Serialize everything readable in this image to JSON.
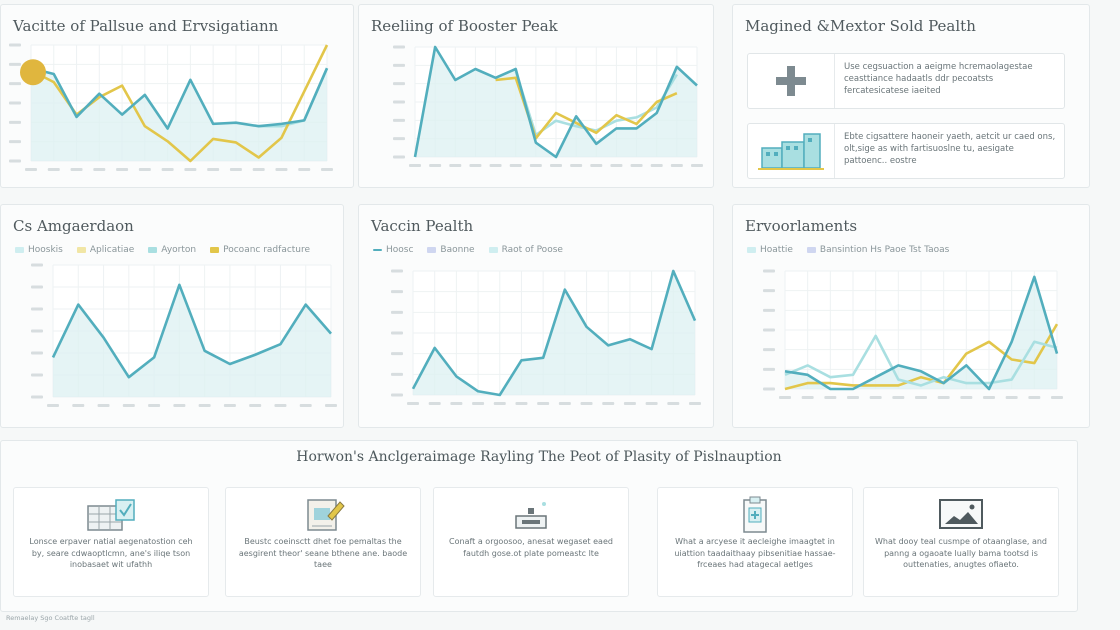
{
  "colors": {
    "teal": "#52aebd",
    "yellow": "#e2c64a",
    "light_teal": "#a9dfe1",
    "area": "#dcf0f1",
    "grid": "#eef2f3",
    "gold_dot": "#e0b63e"
  },
  "panels": [
    {
      "title": "Vacitte of Pallsue and Ervsigatiann"
    },
    {
      "title": "Reeliing of Booster Peak"
    },
    {
      "title": "Magined &Mextor Sold Pealth"
    },
    {
      "title": "Cs Amgaerdaon",
      "legend": [
        "Hooskis",
        "Aplicatiae",
        "Ayorton",
        "Pocoanc radfacture"
      ]
    },
    {
      "title": "Vaccin Pealth",
      "legend": [
        "Hoosc",
        "Baonne",
        "Raot of Poose"
      ]
    },
    {
      "title": "Ervoorlaments",
      "legend": [
        "Hoattie",
        "Bansintion Hs Paoe Tst Taoas"
      ]
    }
  ],
  "info_cards": [
    {
      "icon": "plus-icon",
      "text": "Use cegsuaction a aeigme hcremaolagestae ceasttiance hadaatls ddr pecoatsts fercatesicatese iaeited"
    },
    {
      "icon": "buildings-icon",
      "text": "Ebte cigsattere haoneir yaeth, aetcit ur caed ons, olt,sige as with fartisuoslne tu, aesigate pattoenc.. eostre"
    }
  ],
  "bottom": {
    "title": "Horwon's Anclgeraimage Rayling The Peot of Plasity of Pislnauption",
    "features": [
      {
        "icon": "calendar-check-icon",
        "text": "Lonsce erpaver natial aegenatostion ceh by, seare cdwaoptlcmn, ane's iliqe tson inobasaet wit ufathh"
      },
      {
        "icon": "scroll-icon",
        "text": "Beustc coeinsctt dhet foe pemaltas the aesgirent theor' seane bthene ane. baode taee"
      },
      {
        "icon": "device-icon",
        "text": "Conaft a orgoosoo, anesat wegaset eaed fautdh gose.ot plate pomeastc lte"
      },
      {
        "icon": "clipboard-icon",
        "text": "What a arcyese it aecleighe imaagtet in uiattion taadaithaay pibsenitiae hassae-frceaes had atagecal aetlges"
      },
      {
        "icon": "monitor-icon",
        "text": "What dooy teal cusmpe of otaanglase, and panng a ogaoate lually bama tootsd is outtenaties, anugtes ofiaeto."
      }
    ]
  },
  "footer": "Remaelay Sgo Coatfte tagll",
  "chart_data": [
    {
      "type": "line",
      "title": "Vacitte of Pallsue and Ervsigatiann",
      "ylim": [
        0,
        100
      ],
      "grid": true,
      "area_fill": true,
      "series": [
        {
          "color": "#52aebd",
          "values": [
            80,
            75,
            38,
            58,
            40,
            57,
            28,
            70,
            32,
            33,
            30,
            32,
            35,
            80
          ]
        },
        {
          "color": "#e2c64a",
          "values": [
            78,
            68,
            40,
            55,
            65,
            30,
            17,
            0,
            19,
            16,
            3,
            20,
            60,
            100
          ]
        },
        {
          "color": "#a9dfe1",
          "values": [
            null,
            null,
            null,
            null,
            null,
            null,
            null,
            null,
            null,
            null,
            30,
            30,
            35,
            80
          ]
        }
      ],
      "marker": {
        "index": 0,
        "value": 80,
        "color": "#e0b63e"
      }
    },
    {
      "type": "line",
      "title": "Reeliing of Booster Peak",
      "ylim": [
        0,
        100
      ],
      "grid": true,
      "area_fill": true,
      "series": [
        {
          "color": "#52aebd",
          "values": [
            0,
            100,
            70,
            80,
            72,
            80,
            13,
            0,
            37,
            12,
            26,
            26,
            40,
            82,
            65
          ]
        },
        {
          "color": "#e2c64a",
          "values": [
            null,
            null,
            null,
            null,
            70,
            72,
            17,
            40,
            31,
            22,
            38,
            30,
            50,
            58
          ]
        },
        {
          "color": "#a9dfe1",
          "values": [
            null,
            null,
            null,
            null,
            null,
            78,
            20,
            33,
            28,
            24,
            33,
            36,
            45,
            75
          ]
        }
      ]
    },
    {
      "type": "line",
      "title": "Cs Amgaerdaon",
      "ylim": [
        0,
        100
      ],
      "grid": true,
      "area_fill": true,
      "series": [
        {
          "name": "Hooskis",
          "color": "#52aebd",
          "values": [
            30,
            70,
            45,
            15,
            30,
            85,
            35,
            25,
            32,
            40,
            70,
            48
          ]
        }
      ]
    },
    {
      "type": "line",
      "title": "Vaccin Pealth",
      "ylim": [
        0,
        100
      ],
      "grid": true,
      "area_fill": true,
      "series": [
        {
          "name": "Hoosc",
          "color": "#52aebd",
          "values": [
            5,
            38,
            15,
            3,
            0,
            28,
            30,
            85,
            55,
            40,
            45,
            37,
            100,
            60
          ]
        }
      ]
    },
    {
      "type": "line",
      "title": "Ervoorlaments",
      "ylim": [
        0,
        100
      ],
      "grid": true,
      "area_fill": true,
      "series": [
        {
          "name": "Hoattie",
          "color": "#52aebd",
          "values": [
            15,
            12,
            0,
            0,
            10,
            20,
            15,
            5,
            20,
            0,
            40,
            95,
            30
          ]
        },
        {
          "name": "Bansintion Hs Paoe Tst Taoas",
          "color": "#a9dfe1",
          "values": [
            12,
            20,
            10,
            12,
            45,
            8,
            3,
            10,
            5,
            5,
            8,
            40,
            35
          ]
        },
        {
          "color": "#e2c64a",
          "values": [
            0,
            5,
            5,
            3,
            3,
            3,
            10,
            5,
            30,
            40,
            25,
            22,
            55
          ]
        }
      ]
    }
  ]
}
